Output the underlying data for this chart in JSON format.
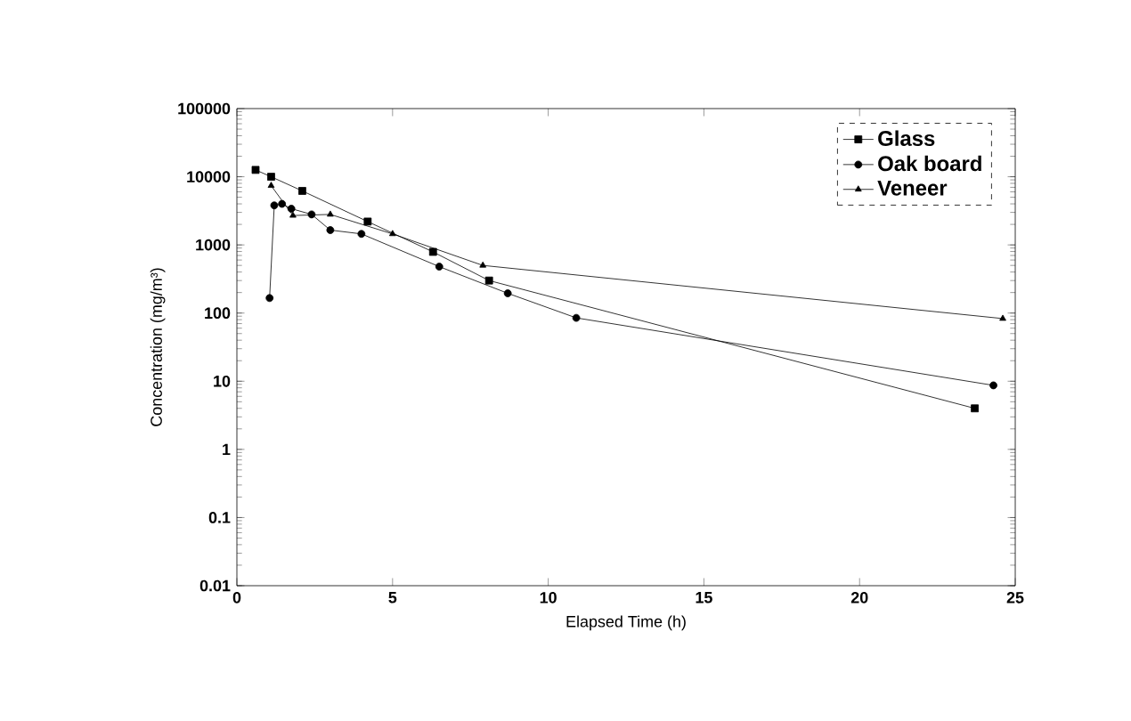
{
  "chart_data": {
    "type": "line",
    "xlabel": "Elapsed Time  (h)",
    "ylabel": "Concentration (mg/m³)",
    "log": "y",
    "xlim": [
      0,
      25
    ],
    "xticks": [
      0,
      5,
      10,
      15,
      20,
      25
    ],
    "ylim": [
      0.01,
      100000
    ],
    "yticks": [
      0.01,
      0.1,
      1,
      10,
      100,
      1000,
      10000,
      100000
    ],
    "legend": "top right",
    "grid": false,
    "series": [
      {
        "name": "Glass",
        "color": "#000000",
        "marker": "square",
        "x": [
          0.6,
          1.1,
          2.1,
          4.2,
          6.3,
          8.1,
          23.7
        ],
        "values": [
          12600,
          10000,
          6200,
          2200,
          790,
          300,
          4
        ]
      },
      {
        "name": "Oak board",
        "color": "#000000",
        "marker": "circle",
        "x": [
          1.05,
          1.2,
          1.45,
          1.75,
          2.4,
          3.0,
          4.0,
          6.5,
          8.7,
          10.9,
          24.3
        ],
        "values": [
          166,
          3800,
          4000,
          3400,
          2800,
          1650,
          1450,
          480,
          195,
          85,
          8.7
        ]
      },
      {
        "name": "Veneer",
        "color": "#000000",
        "marker": "triangle",
        "x": [
          1.1,
          1.8,
          3.0,
          5.0,
          6.3,
          7.9,
          24.6
        ],
        "values": [
          7400,
          2700,
          2800,
          1450,
          null,
          500,
          83
        ]
      }
    ]
  }
}
